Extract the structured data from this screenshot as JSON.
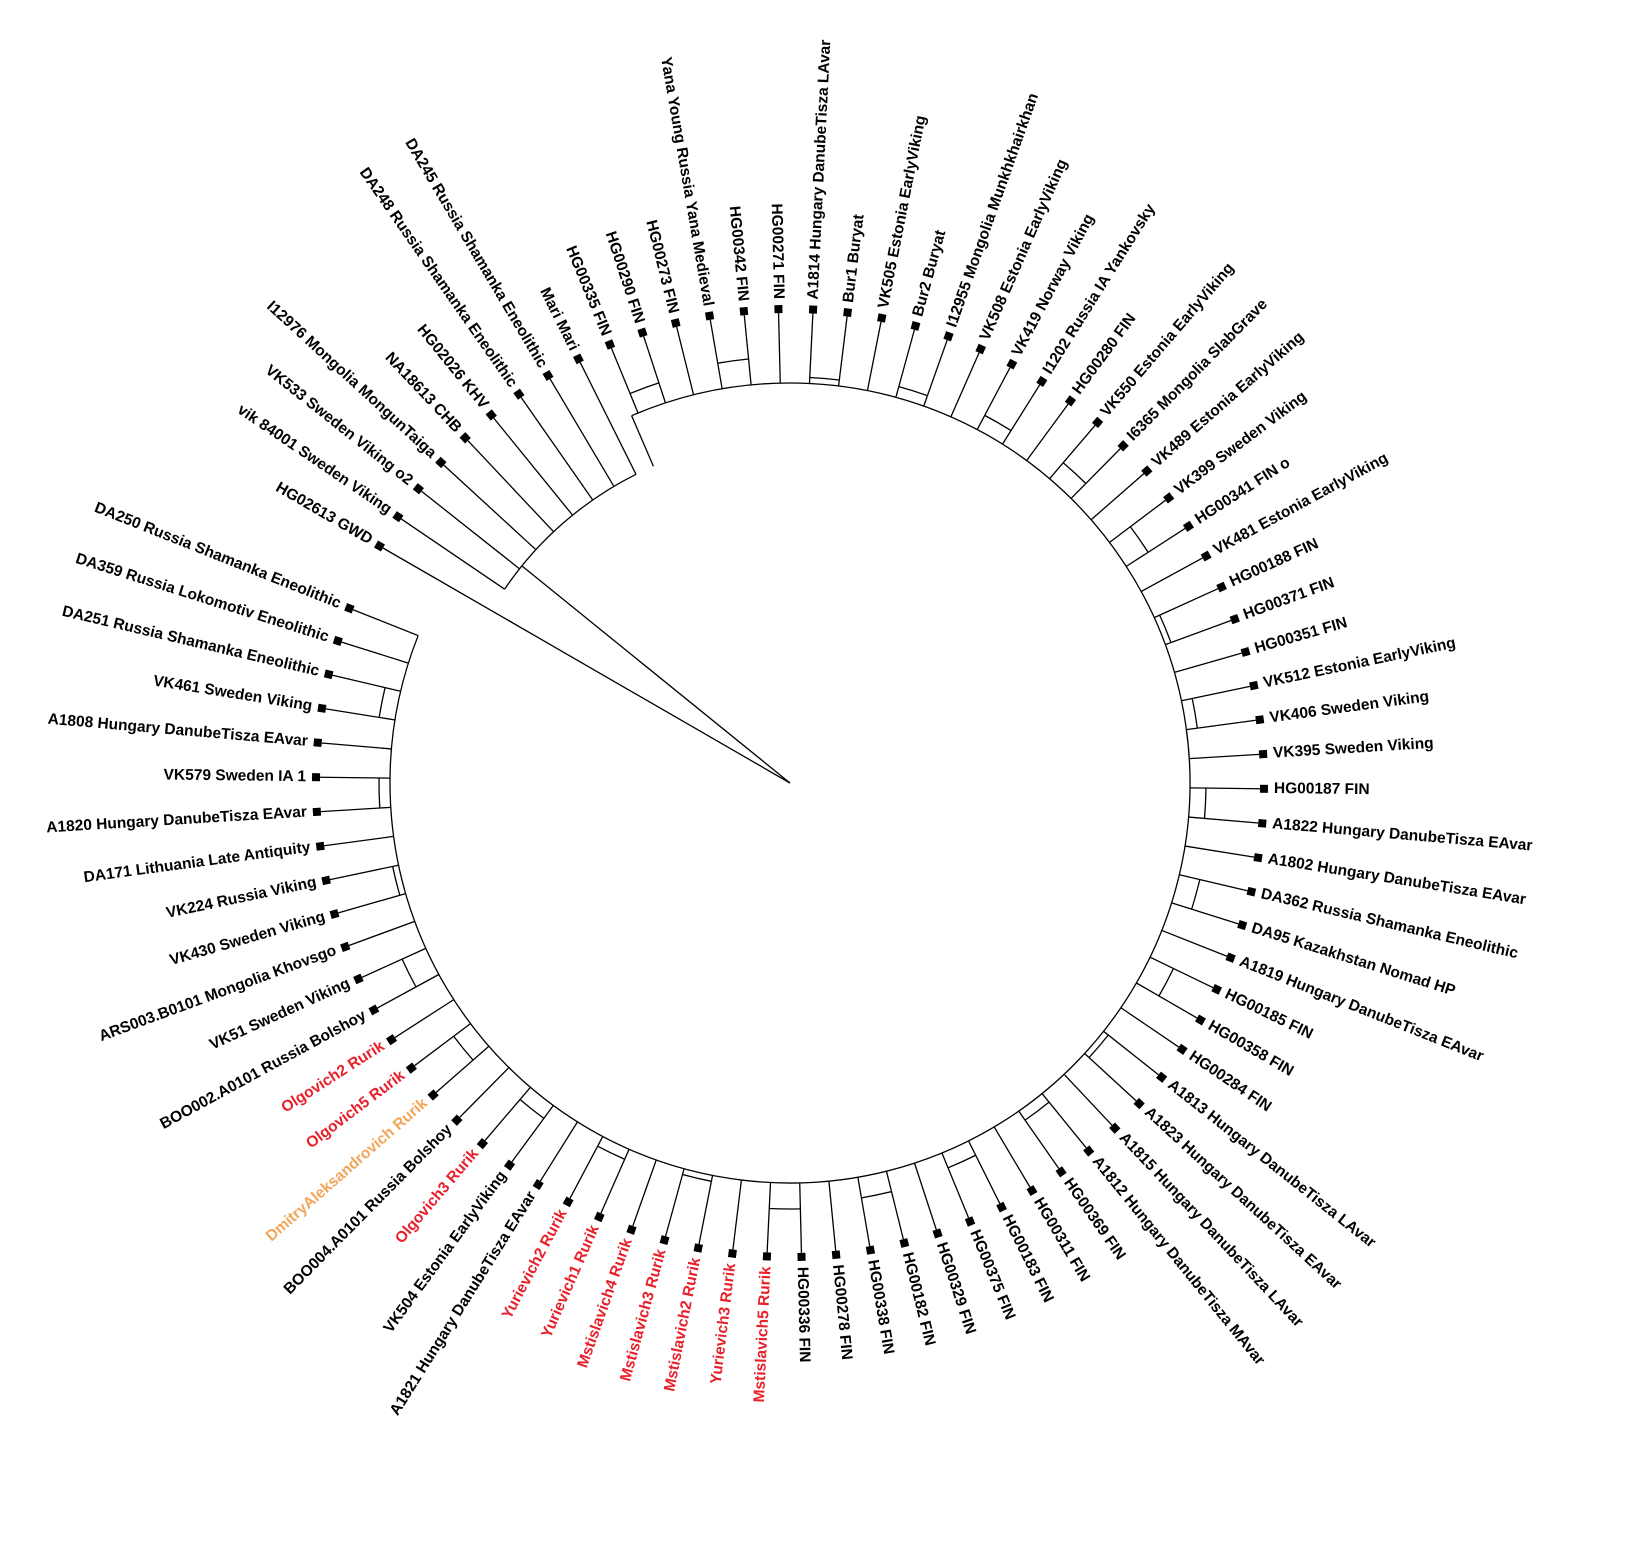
{
  "leaves": [
    {
      "label": "HG02613 GWD",
      "color": "#000000"
    },
    {
      "label": "vik 84001 Sweden Viking",
      "color": "#000000"
    },
    {
      "label": "VK533 Sweden Viking o2",
      "color": "#000000"
    },
    {
      "label": "I12976 Mongolia MongunTaiga",
      "color": "#000000"
    },
    {
      "label": "NA18613 CHB",
      "color": "#000000"
    },
    {
      "label": "HG02026 KHV",
      "color": "#000000"
    },
    {
      "label": "DA248 Russia Shamanka Eneolithic",
      "color": "#000000"
    },
    {
      "label": "DA245 Russia Shamanka Eneolithic",
      "color": "#000000"
    },
    {
      "label": "Mari Mari",
      "color": "#000000"
    },
    {
      "label": "HG00335 FIN",
      "color": "#000000"
    },
    {
      "label": "HG00290 FIN",
      "color": "#000000"
    },
    {
      "label": "HG00273 FIN",
      "color": "#000000"
    },
    {
      "label": "Yana Young Russia Yana Medieval",
      "color": "#000000"
    },
    {
      "label": "HG00342 FIN",
      "color": "#000000"
    },
    {
      "label": "HG00271 FIN",
      "color": "#000000"
    },
    {
      "label": "A1814 Hungary DanubeTisza LAvar",
      "color": "#000000"
    },
    {
      "label": "Bur1 Buryat",
      "color": "#000000"
    },
    {
      "label": "VK505 Estonia EarlyViking",
      "color": "#000000"
    },
    {
      "label": "Bur2 Buryat",
      "color": "#000000"
    },
    {
      "label": "I12955 Mongolia Munkhkhairkhan",
      "color": "#000000"
    },
    {
      "label": "VK508 Estonia EarlyViking",
      "color": "#000000"
    },
    {
      "label": "VK419 Norway Viking",
      "color": "#000000"
    },
    {
      "label": "I1202 Russia IA Yankovsky",
      "color": "#000000"
    },
    {
      "label": "HG00280 FIN",
      "color": "#000000"
    },
    {
      "label": "VK550 Estonia EarlyViking",
      "color": "#000000"
    },
    {
      "label": "I6365 Mongolia SlabGrave",
      "color": "#000000"
    },
    {
      "label": "VK489 Estonia EarlyViking",
      "color": "#000000"
    },
    {
      "label": "VK399 Sweden Viking",
      "color": "#000000"
    },
    {
      "label": "HG00341 FIN o",
      "color": "#000000"
    },
    {
      "label": "VK481 Estonia EarlyViking",
      "color": "#000000"
    },
    {
      "label": "HG00188 FIN",
      "color": "#000000"
    },
    {
      "label": "HG00371 FIN",
      "color": "#000000"
    },
    {
      "label": "HG00351 FIN",
      "color": "#000000"
    },
    {
      "label": "VK512 Estonia EarlyViking",
      "color": "#000000"
    },
    {
      "label": "VK406 Sweden Viking",
      "color": "#000000"
    },
    {
      "label": "VK395 Sweden Viking",
      "color": "#000000"
    },
    {
      "label": "HG00187 FIN",
      "color": "#000000"
    },
    {
      "label": "A1822 Hungary DanubeTisza EAvar",
      "color": "#000000"
    },
    {
      "label": "A1802 Hungary DanubeTisza EAvar",
      "color": "#000000"
    },
    {
      "label": "DA362 Russia Shamanka Eneolithic",
      "color": "#000000"
    },
    {
      "label": "DA95 Kazakhstan Nomad HP",
      "color": "#000000"
    },
    {
      "label": "A1819 Hungary DanubeTisza EAvar",
      "color": "#000000"
    },
    {
      "label": "HG00185 FIN",
      "color": "#000000"
    },
    {
      "label": "HG00358 FIN",
      "color": "#000000"
    },
    {
      "label": "HG00284 FIN",
      "color": "#000000"
    },
    {
      "label": "A1813 Hungary DanubeTisza LAvar",
      "color": "#000000"
    },
    {
      "label": "A1823 Hungary DanubeTisza EAvar",
      "color": "#000000"
    },
    {
      "label": "A1815 Hungary DanubeTisza LAvar",
      "color": "#000000"
    },
    {
      "label": "A1812 Hungary DanubeTisza MAvar",
      "color": "#000000"
    },
    {
      "label": "HG00369 FIN",
      "color": "#000000"
    },
    {
      "label": "HG00311 FIN",
      "color": "#000000"
    },
    {
      "label": "HG00183 FIN",
      "color": "#000000"
    },
    {
      "label": "HG00375 FIN",
      "color": "#000000"
    },
    {
      "label": "HG00329 FIN",
      "color": "#000000"
    },
    {
      "label": "HG00182 FIN",
      "color": "#000000"
    },
    {
      "label": "HG00338 FIN",
      "color": "#000000"
    },
    {
      "label": "HG00278 FIN",
      "color": "#000000"
    },
    {
      "label": "HG00336 FIN",
      "color": "#000000"
    },
    {
      "label": "Mstislavich5 Rurik",
      "color": "#e8202a"
    },
    {
      "label": "Yurievich3 Rurik",
      "color": "#e8202a"
    },
    {
      "label": "Mstislavich2 Rurik",
      "color": "#e8202a"
    },
    {
      "label": "Mstislavich3 Rurik",
      "color": "#e8202a"
    },
    {
      "label": "Mstislavich4 Rurik",
      "color": "#e8202a"
    },
    {
      "label": "Yurievich1 Rurik",
      "color": "#e8202a"
    },
    {
      "label": "Yurievich2 Rurik",
      "color": "#e8202a"
    },
    {
      "label": "A1821 Hungary DanubeTisza EAvar",
      "color": "#000000"
    },
    {
      "label": "VK504 Estonia EarlyViking",
      "color": "#000000"
    },
    {
      "label": "Olgovich3 Rurik",
      "color": "#e8202a"
    },
    {
      "label": "BOO004.A0101 Russia Bolshoy",
      "color": "#000000"
    },
    {
      "label": "DmitryAleksandrovich Rurik",
      "color": "#f2a65a"
    },
    {
      "label": "Olgovich5 Rurik",
      "color": "#e8202a"
    },
    {
      "label": "Olgovich2 Rurik",
      "color": "#e8202a"
    },
    {
      "label": "BOO002.A0101 Russia Bolshoy",
      "color": "#000000"
    },
    {
      "label": "VK51 Sweden Viking",
      "color": "#000000"
    },
    {
      "label": "ARS003.B0101 Mongolia Khovsgo",
      "color": "#000000"
    },
    {
      "label": "VK430 Sweden Viking",
      "color": "#000000"
    },
    {
      "label": "VK224 Russia Viking",
      "color": "#000000"
    },
    {
      "label": "DA171 Lithuania Late Antiquity",
      "color": "#000000"
    },
    {
      "label": "A1820 Hungary DanubeTisza EAvar",
      "color": "#000000"
    },
    {
      "label": "VK579 Sweden IA 1",
      "color": "#000000"
    },
    {
      "label": "A1808 Hungary DanubeTisza EAvar",
      "color": "#000000"
    },
    {
      "label": "VK461 Sweden Viking",
      "color": "#000000"
    },
    {
      "label": "DA251 Russia Shamanka Eneolithic",
      "color": "#000000"
    },
    {
      "label": "DA359 Russia Lokomotiv Eneolithic",
      "color": "#000000"
    },
    {
      "label": "DA250 Russia Shamanka Eneolithic",
      "color": "#000000"
    }
  ]
}
